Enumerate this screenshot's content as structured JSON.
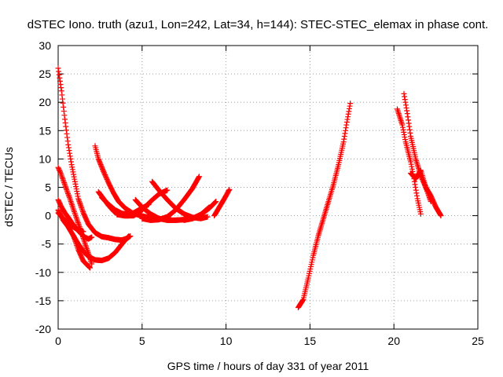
{
  "chart_data": {
    "type": "scatter",
    "title": "dSTEC Iono. truth (azu1, Lon=242, Lat=34, h=144): STEC-STEC_elemax in phase cont.",
    "xlabel": "GPS time / hours of day 331 of year 2011",
    "ylabel": "dSTEC  / TECUs",
    "xlim": [
      0,
      25
    ],
    "ylim": [
      -20,
      30
    ],
    "x_ticks": [
      0,
      5,
      10,
      15,
      20,
      25
    ],
    "y_ticks": [
      -20,
      -15,
      -10,
      -5,
      0,
      5,
      10,
      15,
      20,
      25,
      30
    ],
    "grid": true,
    "grid_style": "dotted",
    "marker": "+",
    "color": "#ff0000",
    "series": [
      {
        "x": [
          0.0,
          0.2,
          0.4,
          0.6,
          0.8,
          1.0,
          1.2,
          1.5,
          1.8,
          2.2,
          2.6,
          3.0,
          3.4,
          3.8,
          4.1,
          4.3
        ],
        "y": [
          26.0,
          22.0,
          17.0,
          12.5,
          9.0,
          6.0,
          3.0,
          0.5,
          -1.5,
          -3.0,
          -3.7,
          -3.9,
          -4.2,
          -4.3,
          -4.0,
          -3.6
        ]
      },
      {
        "x": [
          0.0,
          0.2,
          0.4,
          0.6,
          0.8,
          1.0,
          1.2,
          1.4,
          1.6,
          1.8,
          2.0
        ],
        "y": [
          2.8,
          1.5,
          0.5,
          -0.3,
          -1.2,
          -2.0,
          -2.7,
          -3.3,
          -3.8,
          -4.1,
          -3.8
        ]
      },
      {
        "x": [
          0.0,
          0.15,
          0.3,
          0.5,
          0.7,
          0.9,
          1.1,
          1.3,
          1.5,
          1.7,
          1.9,
          2.0
        ],
        "y": [
          8.5,
          7.5,
          6.3,
          4.6,
          3.0,
          1.2,
          -0.5,
          -2.2,
          -4.0,
          -5.8,
          -7.5,
          -8.5
        ]
      },
      {
        "x": [
          0.9,
          1.2,
          1.5,
          1.9
        ],
        "y": [
          -3.5,
          -6.0,
          -8.0,
          -9.2
        ]
      },
      {
        "x": [
          0.0,
          0.3,
          0.6,
          0.9,
          1.2,
          1.5,
          1.8,
          2.2,
          2.6,
          3.0,
          3.4,
          3.8,
          4.2
        ],
        "y": [
          1.0,
          -0.8,
          -2.0,
          -3.5,
          -5.0,
          -6.3,
          -7.2,
          -7.8,
          -7.9,
          -7.5,
          -6.5,
          -5.0,
          -3.6
        ]
      },
      {
        "x": [
          0.0,
          0.3,
          0.6,
          0.9,
          1.2,
          1.5
        ],
        "y": [
          0.5,
          -0.5,
          -1.3,
          -2.0,
          -2.5,
          -2.8
        ]
      },
      {
        "x": [
          2.2,
          2.4,
          2.7,
          3.0,
          3.3,
          3.6,
          4.0,
          4.4,
          4.8,
          5.2,
          5.7,
          6.2,
          6.7
        ],
        "y": [
          12.3,
          10.0,
          7.8,
          5.8,
          4.0,
          2.5,
          1.3,
          0.5,
          0.1,
          -0.2,
          -0.5,
          -0.6,
          -0.7
        ]
      },
      {
        "x": [
          2.4,
          2.7,
          3.0,
          3.3,
          3.6,
          3.9,
          4.2,
          4.5,
          4.8,
          5.1,
          5.4
        ],
        "y": [
          4.2,
          3.0,
          1.8,
          0.8,
          0.2,
          0.0,
          0.0,
          0.5,
          1.0,
          1.5,
          2.0
        ]
      },
      {
        "x": [
          2.6,
          3.0,
          3.4,
          3.8,
          4.2,
          4.6,
          4.9
        ],
        "y": [
          3.2,
          2.0,
          1.0,
          0.4,
          0.2,
          0.3,
          0.8
        ]
      },
      {
        "x": [
          4.6,
          5.0,
          5.5,
          6.0,
          6.5,
          7.0,
          7.5,
          8.0,
          8.5,
          9.0
        ],
        "y": [
          2.8,
          1.5,
          0.3,
          -0.5,
          -0.8,
          -0.8,
          -0.7,
          -0.5,
          0.2,
          1.5
        ]
      },
      {
        "x": [
          5.6,
          6.0,
          6.5,
          7.0,
          7.5,
          8.0,
          8.5,
          8.9
        ],
        "y": [
          6.0,
          4.5,
          2.8,
          1.3,
          0.3,
          -0.3,
          -0.5,
          -0.2
        ]
      },
      {
        "x": [
          5.0,
          5.5,
          6.0,
          6.5,
          7.0,
          7.5,
          8.0,
          8.4
        ],
        "y": [
          -0.5,
          -0.8,
          -0.7,
          -0.2,
          1.0,
          2.8,
          4.8,
          6.9
        ]
      },
      {
        "x": [
          3.5,
          4.0,
          4.5,
          5.0,
          5.5,
          6.0,
          6.5
        ],
        "y": [
          0.2,
          0.0,
          0.0,
          1.0,
          2.5,
          3.8,
          4.5
        ]
      },
      {
        "x": [
          7.5,
          8.0,
          8.5,
          9.0,
          9.4
        ],
        "y": [
          -0.8,
          -0.5,
          0.2,
          1.3,
          2.5
        ]
      },
      {
        "x": [
          9.3,
          9.6,
          9.9,
          10.2
        ],
        "y": [
          0.0,
          1.5,
          3.0,
          4.6
        ]
      },
      {
        "x": [
          14.3,
          14.6,
          14.9,
          15.2,
          15.5,
          15.8,
          16.1,
          16.4,
          16.7,
          17.0,
          17.2,
          17.4
        ],
        "y": [
          -16.2,
          -14.8,
          -11.0,
          -7.0,
          -3.5,
          -0.5,
          2.5,
          5.5,
          9.0,
          13.0,
          16.5,
          19.8
        ]
      },
      {
        "x": [
          20.2,
          20.5,
          20.7,
          21.0,
          21.2,
          21.4,
          21.6
        ],
        "y": [
          18.8,
          16.0,
          13.0,
          9.5,
          6.5,
          3.0,
          0.3
        ]
      },
      {
        "x": [
          20.6,
          20.8,
          21.0,
          21.3,
          21.6,
          21.9,
          22.2,
          22.5,
          22.8
        ],
        "y": [
          21.5,
          18.0,
          14.0,
          10.0,
          7.0,
          5.0,
          3.5,
          1.5,
          0.0
        ]
      },
      {
        "x": [
          21.0,
          21.3,
          21.6,
          21.9,
          22.2
        ],
        "y": [
          7.5,
          6.5,
          8.0,
          5.0,
          2.5
        ]
      }
    ]
  }
}
